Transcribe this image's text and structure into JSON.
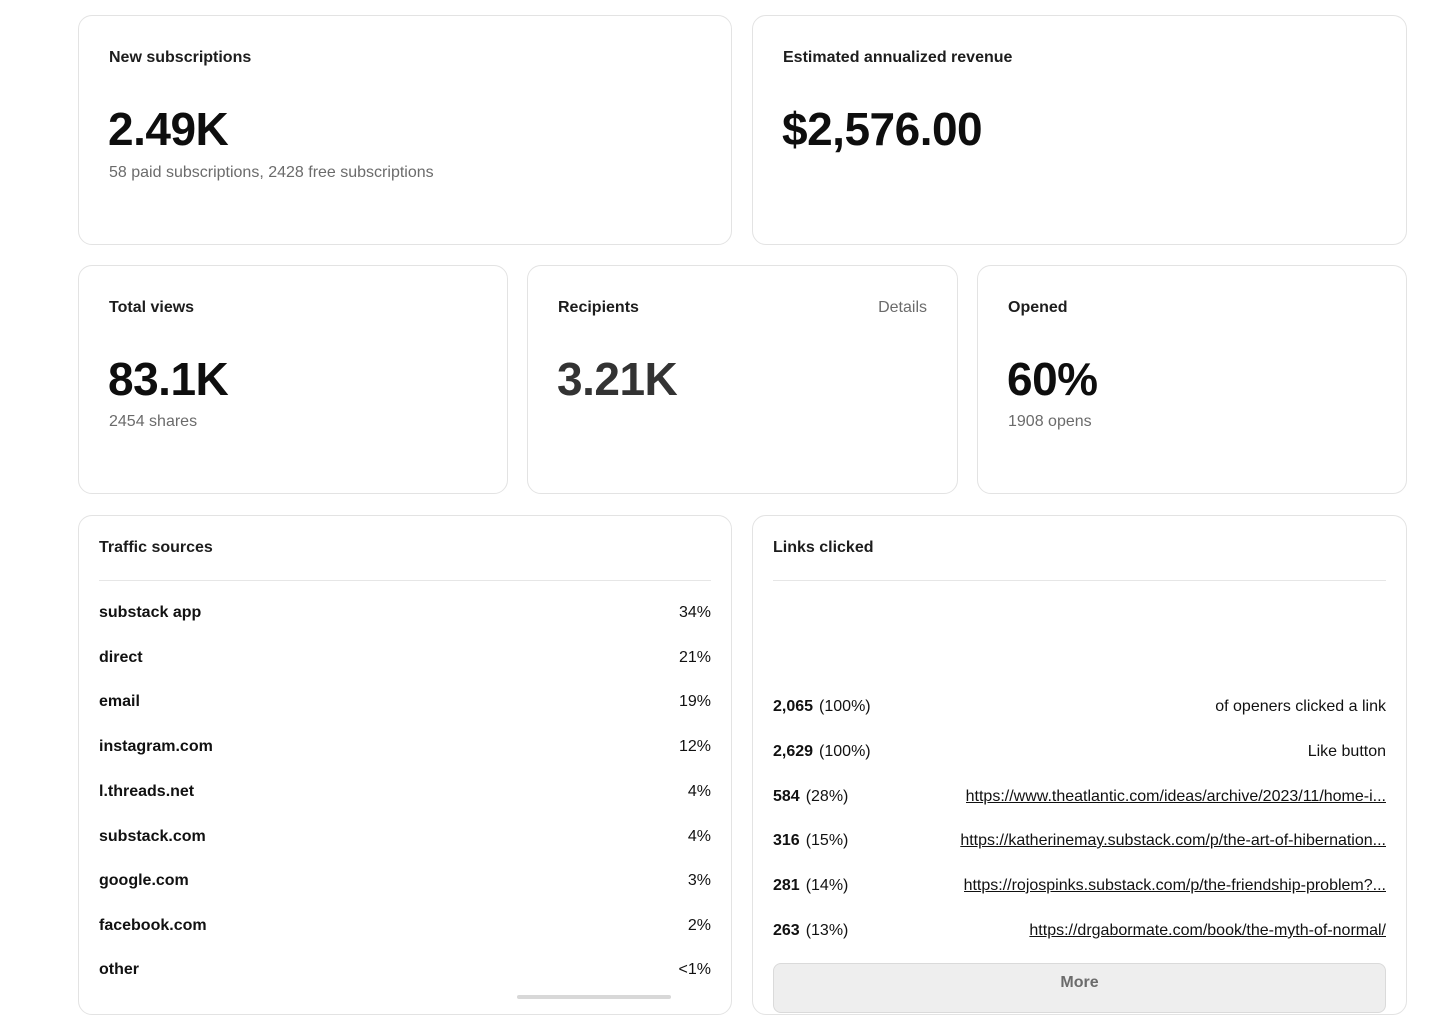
{
  "new_subscriptions": {
    "title": "New subscriptions",
    "value": "2.49K",
    "detail": "58 paid subscriptions, 2428 free subscriptions"
  },
  "revenue": {
    "title": "Estimated annualized revenue",
    "value": "$2,576.00"
  },
  "total_views": {
    "title": "Total views",
    "value": "83.1K",
    "detail": "2454 shares"
  },
  "recipients": {
    "title": "Recipients",
    "details_label": "Details",
    "value": "3.21K"
  },
  "opened": {
    "title": "Opened",
    "value": "60%",
    "detail": "1908 opens"
  },
  "traffic_sources": {
    "title": "Traffic sources",
    "rows": [
      {
        "name": "substack app",
        "pct": "34%"
      },
      {
        "name": "direct",
        "pct": "21%"
      },
      {
        "name": "email",
        "pct": "19%"
      },
      {
        "name": "instagram.com",
        "pct": "12%"
      },
      {
        "name": "l.threads.net",
        "pct": "4%"
      },
      {
        "name": "substack.com",
        "pct": "4%"
      },
      {
        "name": "google.com",
        "pct": "3%"
      },
      {
        "name": "facebook.com",
        "pct": "2%"
      },
      {
        "name": "other",
        "pct": "<1%"
      }
    ]
  },
  "links_clicked": {
    "title": "Links clicked",
    "rows": [
      {
        "count": "2,065",
        "share": "(100%)",
        "target": "of openers clicked a link"
      },
      {
        "count": "2,629",
        "share": "(100%)",
        "target": "Like button"
      },
      {
        "count": "584",
        "share": "(28%)",
        "target": "https://www.theatlantic.com/ideas/archive/2023/11/home-i..."
      },
      {
        "count": "316",
        "share": "(15%)",
        "target": "https://katherinemay.substack.com/p/the-art-of-hibernation..."
      },
      {
        "count": "281",
        "share": "(14%)",
        "target": "https://rojospinks.substack.com/p/the-friendship-problem?..."
      },
      {
        "count": "263",
        "share": "(13%)",
        "target": "https://drgabormate.com/book/the-myth-of-normal/"
      }
    ],
    "more_label": "More"
  }
}
